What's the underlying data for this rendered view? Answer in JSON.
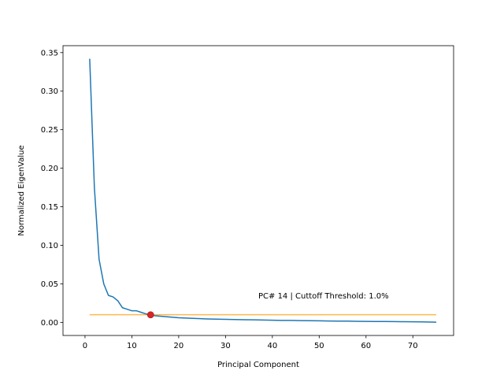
{
  "chart_data": {
    "type": "line",
    "xlabel": "Principal Component",
    "ylabel": "Normalized EigenValue",
    "xlim": [
      -4.7,
      78.7
    ],
    "ylim": [
      -0.017,
      0.359
    ],
    "xticks": [
      0,
      10,
      20,
      30,
      40,
      50,
      60,
      70
    ],
    "yticks": [
      0.0,
      0.05,
      0.1,
      0.15,
      0.2,
      0.25,
      0.3,
      0.35
    ],
    "ytick_labels": [
      "0.00",
      "0.05",
      "0.10",
      "0.15",
      "0.20",
      "0.25",
      "0.30",
      "0.35"
    ],
    "grid": false,
    "series": [
      {
        "color": "#1f77b4",
        "x": [
          1,
          2,
          3,
          4,
          5,
          6,
          7,
          8,
          9,
          10,
          11,
          12,
          13,
          14,
          15,
          16,
          17,
          18,
          19,
          20,
          22,
          24,
          26,
          28,
          30,
          32,
          34,
          36,
          38,
          40,
          42,
          44,
          46,
          48,
          50,
          52,
          54,
          56,
          58,
          60,
          62,
          64,
          66,
          68,
          70,
          72,
          74,
          75
        ],
        "y": [
          0.342,
          0.175,
          0.082,
          0.05,
          0.035,
          0.033,
          0.028,
          0.019,
          0.017,
          0.015,
          0.015,
          0.013,
          0.011,
          0.0098,
          0.0085,
          0.008,
          0.0075,
          0.007,
          0.0065,
          0.006,
          0.0055,
          0.005,
          0.0045,
          0.0042,
          0.004,
          0.0037,
          0.0035,
          0.0033,
          0.003,
          0.0028,
          0.0026,
          0.0025,
          0.0023,
          0.0021,
          0.002,
          0.0018,
          0.0017,
          0.0016,
          0.0014,
          0.0013,
          0.0012,
          0.0011,
          0.001,
          0.0009,
          0.0008,
          0.0006,
          0.0004,
          0.0003
        ]
      }
    ],
    "threshold": {
      "value": 0.01,
      "x_start": 1,
      "x_end": 75,
      "color": "#ffb74d"
    },
    "marker": {
      "x": 14,
      "y": 0.0098,
      "color": "#d62728"
    },
    "annotation": {
      "text": "PC# 14 | Cuttoff Threshold: 1.0%",
      "x": 37,
      "y": 0.035
    }
  }
}
